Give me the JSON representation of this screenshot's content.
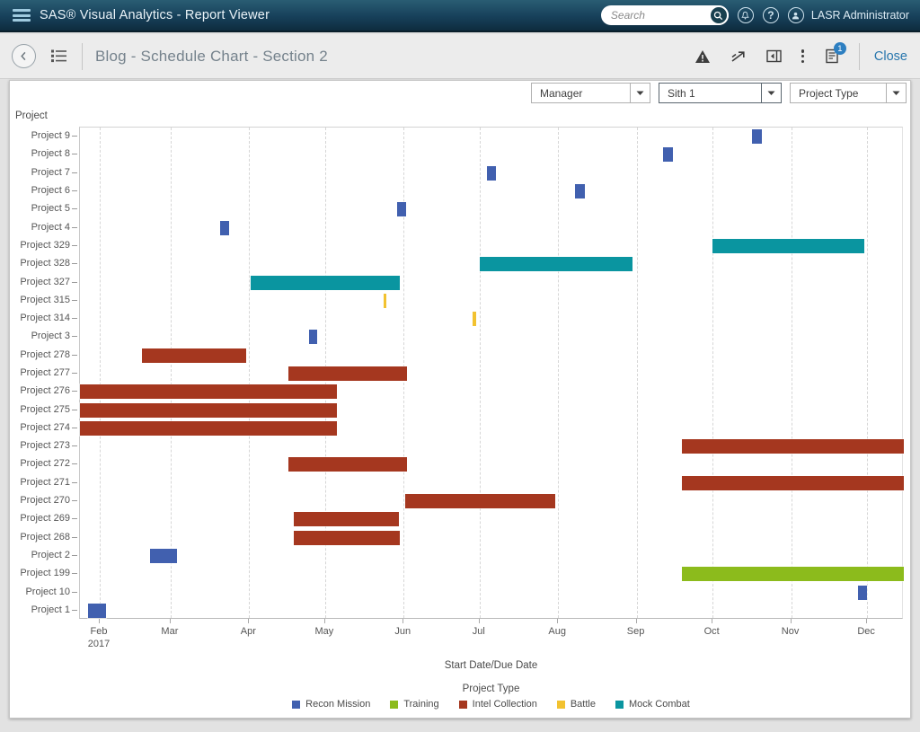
{
  "topbar": {
    "title": "SAS® Visual Analytics - Report Viewer",
    "search_placeholder": "Search",
    "user_name": "LASR Administrator"
  },
  "toolbar": {
    "report_title": "Blog - Schedule Chart - Section 2",
    "comments_badge": "1",
    "close_label": "Close"
  },
  "filters": [
    {
      "label": "Manager",
      "state": "normal"
    },
    {
      "label": "Sith 1",
      "state": "focused"
    },
    {
      "label": "Project Type",
      "state": "normal"
    }
  ],
  "chart_data": {
    "type": "gantt",
    "y_axis_title": "Project",
    "xlabel": "Start Date/Due Date",
    "legend_title": "Project Type",
    "legend": [
      {
        "name": "Recon Mission",
        "color": "#4160AF"
      },
      {
        "name": "Training",
        "color": "#8CBB1C"
      },
      {
        "name": "Intel Collection",
        "color": "#A5371F"
      },
      {
        "name": "Battle",
        "color": "#F2C230"
      },
      {
        "name": "Mock Combat",
        "color": "#0A95A0"
      }
    ],
    "x_domain_days": [
      23.2,
      348.5
    ],
    "months": [
      {
        "label": "Feb",
        "sub": "2017",
        "day": 31
      },
      {
        "label": "Mar",
        "day": 59
      },
      {
        "label": "Apr",
        "day": 90
      },
      {
        "label": "May",
        "day": 120
      },
      {
        "label": "Jun",
        "day": 151
      },
      {
        "label": "Jul",
        "day": 181
      },
      {
        "label": "Aug",
        "day": 212
      },
      {
        "label": "Sep",
        "day": 243
      },
      {
        "label": "Oct",
        "day": 273
      },
      {
        "label": "Nov",
        "day": 304
      },
      {
        "label": "Dec",
        "day": 334
      }
    ],
    "categories": [
      "Project 9",
      "Project 8",
      "Project 7",
      "Project 6",
      "Project 5",
      "Project 4",
      "Project 329",
      "Project 328",
      "Project 327",
      "Project 315",
      "Project 314",
      "Project 3",
      "Project 278",
      "Project 277",
      "Project 276",
      "Project 275",
      "Project 274",
      "Project 273",
      "Project 272",
      "Project 271",
      "Project 270",
      "Project 269",
      "Project 268",
      "Project 2",
      "Project 199",
      "Project 10",
      "Project 1"
    ],
    "tasks": [
      {
        "project": "Project 9",
        "type": "Recon Mission",
        "start_day": 288.5,
        "end_day": 292.5
      },
      {
        "project": "Project 8",
        "type": "Recon Mission",
        "start_day": 253.5,
        "end_day": 257.5
      },
      {
        "project": "Project 7",
        "type": "Recon Mission",
        "start_day": 184.0,
        "end_day": 187.5
      },
      {
        "project": "Project 6",
        "type": "Recon Mission",
        "start_day": 218.5,
        "end_day": 222.5
      },
      {
        "project": "Project 5",
        "type": "Recon Mission",
        "start_day": 148.5,
        "end_day": 152.0
      },
      {
        "project": "Project 4",
        "type": "Recon Mission",
        "start_day": 78.5,
        "end_day": 82.0
      },
      {
        "project": "Project 329",
        "type": "Mock Combat",
        "start_day": 273.0,
        "end_day": 333.0
      },
      {
        "project": "Project 328",
        "type": "Mock Combat",
        "start_day": 181.0,
        "end_day": 241.5
      },
      {
        "project": "Project 327",
        "type": "Mock Combat",
        "start_day": 90.5,
        "end_day": 149.5
      },
      {
        "project": "Project 315",
        "type": "Battle",
        "start_day": 143.0,
        "end_day": 144.2
      },
      {
        "project": "Project 314",
        "type": "Battle",
        "start_day": 178.3,
        "end_day": 179.5
      },
      {
        "project": "Project 3",
        "type": "Recon Mission",
        "start_day": 113.5,
        "end_day": 117.0
      },
      {
        "project": "Project 278",
        "type": "Intel Collection",
        "start_day": 47.5,
        "end_day": 89.0
      },
      {
        "project": "Project 277",
        "type": "Intel Collection",
        "start_day": 105.5,
        "end_day": 152.5
      },
      {
        "project": "Project 276",
        "type": "Intel Collection",
        "start_day": 23.2,
        "end_day": 124.5
      },
      {
        "project": "Project 275",
        "type": "Intel Collection",
        "start_day": 23.2,
        "end_day": 124.5
      },
      {
        "project": "Project 274",
        "type": "Intel Collection",
        "start_day": 23.2,
        "end_day": 124.5
      },
      {
        "project": "Project 273",
        "type": "Intel Collection",
        "start_day": 261.0,
        "end_day": 348.5
      },
      {
        "project": "Project 272",
        "type": "Intel Collection",
        "start_day": 105.5,
        "end_day": 152.5
      },
      {
        "project": "Project 271",
        "type": "Intel Collection",
        "start_day": 261.0,
        "end_day": 348.5
      },
      {
        "project": "Project 270",
        "type": "Intel Collection",
        "start_day": 151.5,
        "end_day": 211.0
      },
      {
        "project": "Project 269",
        "type": "Intel Collection",
        "start_day": 107.5,
        "end_day": 149.0
      },
      {
        "project": "Project 268",
        "type": "Intel Collection",
        "start_day": 107.5,
        "end_day": 149.5
      },
      {
        "project": "Project 2",
        "type": "Recon Mission",
        "start_day": 51.0,
        "end_day": 61.5
      },
      {
        "project": "Project 199",
        "type": "Training",
        "start_day": 261.0,
        "end_day": 348.5
      },
      {
        "project": "Project 10",
        "type": "Recon Mission",
        "start_day": 330.5,
        "end_day": 334.0
      },
      {
        "project": "Project 1",
        "type": "Recon Mission",
        "start_day": 26.5,
        "end_day": 33.5
      }
    ]
  }
}
